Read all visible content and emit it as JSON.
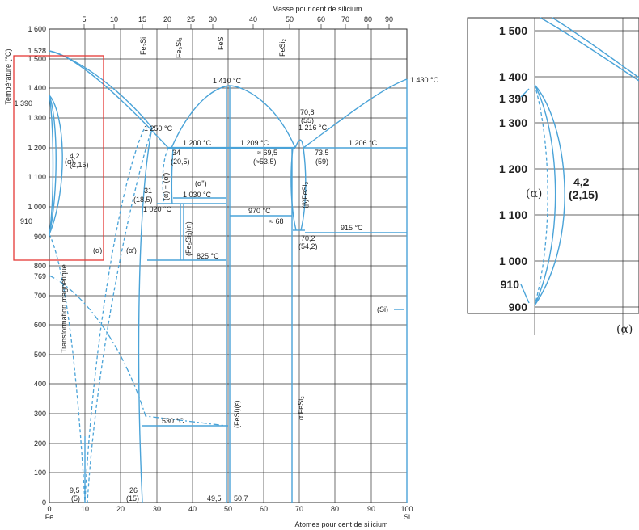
{
  "main": {
    "top_axis_title": "Masse pour cent de silicium",
    "top_ticks": [
      "5",
      "10",
      "15",
      "20",
      "25",
      "30",
      "40",
      "50",
      "60",
      "70",
      "80",
      "90"
    ],
    "bottom_axis_title": "Atomes pour cent de silicium",
    "bottom_ticks": [
      "0",
      "10",
      "20",
      "30",
      "40",
      "50",
      "60",
      "70",
      "80",
      "90",
      "100"
    ],
    "bottom_left_element": "Fe",
    "bottom_right_element": "Si",
    "y_axis_title": "Température (°C)",
    "y_ticks": [
      "1 600",
      "1 528",
      "1 500",
      "1 400",
      "1 390",
      "1 300",
      "1 200",
      "1 100",
      "1 000",
      "910",
      "900",
      "800",
      "769",
      "700",
      "600",
      "500",
      "400",
      "300",
      "200",
      "100",
      "0"
    ],
    "phase_labels": {
      "alpha_main": "(α)",
      "alpha_low": "(α)",
      "alpha_prime": "(α')",
      "fe3si": "Fe₃Si",
      "fe5si3": "Fe₅Si₃",
      "fesi": "FeSi",
      "fesi2": "FeSi₂",
      "alpha_pp": "(α'')",
      "alpha_alpha_prime": "(α) + (α')",
      "fe5si3_eta": "(Fe₅Si₃)(η)",
      "fesi_eps": "(FeSi)(ε)",
      "beta_fesi2": "(β)FeSi₂",
      "alpha_fesi2": "α FeSi₂",
      "si": "(Si)",
      "magnetic": "Transformation magnétique"
    },
    "annotations": {
      "t1410": "1 410 °C",
      "t1430": "1 430 °C",
      "t1250": "1 250 °C",
      "t1200": "1 200 °C",
      "t1209": "1 209 °C",
      "t1216": "1 216 °C",
      "t1206": "1 206 °C",
      "t1030": "1 030 °C",
      "t1020": "1 020 °C",
      "t970": "970 °C",
      "t915": "915 °C",
      "t825": "825 °C",
      "t530": "530 °C",
      "c42": "4,2",
      "c215": "(2,15)",
      "c34": "34",
      "c205": "(20,5)",
      "c31": "31",
      "c185": "(18,5)",
      "c708": "70,8",
      "c55": "(55)",
      "c695": "≈ 69,5",
      "c535": "(≈53,5)",
      "c735": "73,5",
      "c59": "(59)",
      "c68": "≈ 68",
      "c702": "70,2",
      "c542": "(54,2)",
      "c95": "9,5",
      "c5": "(5)",
      "c26": "26",
      "c15": "(15)",
      "c495": "49,5",
      "c507": "50,7"
    }
  },
  "inset": {
    "y_ticks": [
      "1 500",
      "1 400",
      "1 390",
      "1 300",
      "1 200",
      "1 100",
      "1 000",
      "910",
      "900"
    ],
    "alpha": "(α)",
    "c42": "4,2",
    "c215": "(2,15)",
    "alpha_bottom": "(α)"
  },
  "colors": {
    "curve": "#4aa3d8",
    "highlight_box": "#e53935",
    "grid": "#333333"
  }
}
